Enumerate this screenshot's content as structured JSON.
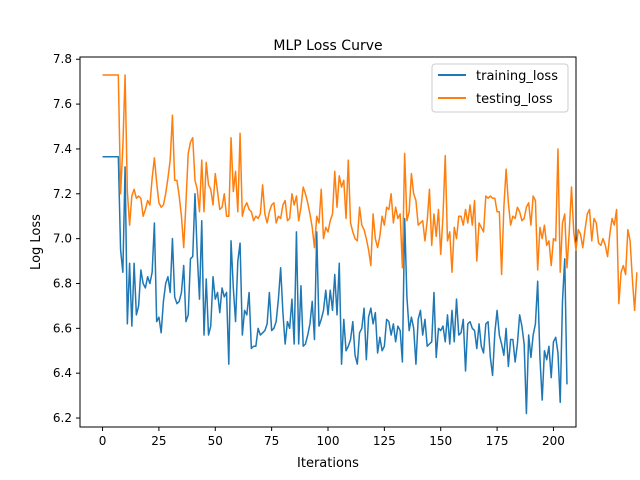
{
  "chart_data": {
    "type": "line",
    "title": "MLP Loss Curve",
    "xlabel": "Iterations",
    "ylabel": "Log Loss",
    "xlim": [
      -10,
      210
    ],
    "ylim": [
      6.16,
      7.81
    ],
    "xticks": [
      0,
      25,
      50,
      75,
      100,
      125,
      150,
      175,
      200
    ],
    "yticks": [
      6.2,
      6.4,
      6.6,
      6.8,
      7.0,
      7.2,
      7.4,
      7.6,
      7.8
    ],
    "legend_position": "top-right",
    "grid": false,
    "series": [
      {
        "name": "training_loss",
        "color": "#1f77b4",
        "values": [
          7.365,
          7.365,
          7.365,
          7.365,
          7.365,
          7.365,
          7.365,
          7.365,
          6.95,
          6.85,
          7.32,
          6.62,
          6.89,
          6.61,
          6.89,
          6.66,
          6.7,
          6.86,
          6.8,
          6.78,
          6.83,
          6.8,
          6.85,
          7.07,
          6.63,
          6.65,
          6.58,
          6.72,
          6.8,
          6.83,
          6.76,
          7.0,
          6.74,
          6.71,
          6.72,
          6.76,
          6.88,
          6.63,
          6.66,
          6.91,
          6.92,
          7.2,
          6.93,
          6.73,
          7.08,
          6.57,
          6.82,
          6.57,
          6.61,
          6.83,
          6.73,
          6.76,
          6.67,
          6.78,
          6.74,
          6.76,
          6.44,
          6.99,
          6.78,
          6.63,
          6.9,
          6.98,
          6.57,
          6.68,
          6.66,
          6.76,
          6.51,
          6.52,
          6.52,
          6.6,
          6.57,
          6.58,
          6.59,
          6.62,
          6.76,
          6.59,
          6.6,
          6.63,
          6.73,
          6.87,
          6.67,
          6.53,
          6.63,
          6.6,
          6.73,
          6.53,
          7.03,
          6.53,
          6.79,
          6.52,
          6.53,
          6.57,
          6.62,
          6.72,
          6.55,
          7.03,
          6.61,
          6.64,
          6.68,
          6.77,
          6.66,
          6.77,
          6.68,
          6.84,
          6.66,
          6.89,
          6.44,
          6.64,
          6.5,
          6.52,
          6.55,
          6.63,
          6.48,
          6.44,
          6.58,
          6.6,
          6.69,
          6.46,
          6.65,
          6.69,
          6.62,
          6.67,
          6.49,
          6.56,
          6.5,
          6.52,
          6.64,
          6.63,
          6.57,
          6.62,
          6.54,
          6.61,
          6.59,
          6.45,
          7.09,
          6.74,
          6.59,
          6.65,
          6.6,
          6.44,
          6.64,
          6.68,
          6.57,
          6.64,
          6.52,
          6.53,
          6.54,
          6.76,
          6.47,
          6.6,
          6.59,
          6.61,
          6.54,
          6.66,
          6.53,
          6.68,
          6.54,
          6.73,
          6.57,
          6.58,
          6.64,
          6.41,
          6.62,
          6.63,
          6.6,
          6.59,
          6.51,
          6.62,
          6.52,
          6.49,
          6.62,
          6.63,
          6.47,
          6.39,
          6.58,
          6.68,
          6.57,
          6.53,
          6.48,
          6.6,
          6.43,
          6.55,
          6.55,
          6.45,
          6.53,
          6.66,
          6.61,
          6.53,
          6.22,
          6.57,
          6.47,
          6.57,
          6.62,
          6.81,
          6.47,
          6.28,
          6.5,
          6.46,
          6.52,
          6.38,
          6.54,
          6.56,
          6.49,
          6.27,
          6.72,
          6.91,
          6.35
        ]
      },
      {
        "name": "testing_loss",
        "color": "#ff7f0e",
        "values": [
          7.73,
          7.73,
          7.73,
          7.73,
          7.73,
          7.73,
          7.73,
          7.73,
          7.2,
          7.41,
          7.73,
          7.21,
          7.06,
          7.19,
          7.22,
          7.18,
          7.19,
          7.18,
          7.1,
          7.13,
          7.17,
          7.15,
          7.27,
          7.36,
          7.25,
          7.16,
          7.14,
          7.15,
          7.2,
          7.27,
          7.35,
          7.55,
          7.26,
          7.26,
          7.19,
          7.1,
          6.96,
          7.16,
          7.38,
          7.43,
          7.45,
          7.26,
          7.22,
          7.12,
          7.35,
          7.12,
          7.34,
          7.24,
          7.22,
          7.15,
          7.29,
          7.21,
          7.13,
          7.14,
          7.2,
          7.1,
          7.1,
          7.45,
          7.21,
          7.3,
          7.12,
          7.47,
          7.1,
          7.14,
          7.16,
          7.13,
          7.12,
          7.08,
          7.1,
          7.09,
          7.11,
          7.24,
          7.11,
          7.07,
          7.12,
          7.15,
          7.16,
          7.07,
          7.1,
          7.09,
          7.15,
          7.17,
          7.08,
          7.09,
          7.2,
          7.15,
          7.19,
          7.08,
          7.14,
          7.23,
          7.2,
          7.16,
          7.11,
          7.05,
          6.96,
          7.1,
          7.07,
          7.22,
          7.0,
          7.05,
          7.03,
          7.08,
          7.11,
          7.3,
          7.14,
          7.28,
          7.23,
          7.26,
          7.09,
          7.35,
          7.07,
          7.03,
          7.0,
          6.99,
          7.14,
          7.06,
          7.04,
          7.0,
          6.95,
          6.88,
          7.11,
          7.0,
          6.96,
          7.01,
          7.1,
          7.06,
          7.14,
          7.13,
          7.2,
          7.07,
          7.14,
          7.09,
          7.11,
          6.87,
          7.38,
          7.08,
          7.12,
          7.29,
          7.2,
          7.17,
          7.06,
          7.07,
          7.08,
          6.99,
          7.08,
          7.22,
          6.97,
          7.11,
          7.01,
          7.13,
          6.93,
          7.1,
          7.37,
          6.99,
          7.03,
          6.85,
          7.05,
          7.0,
          7.1,
          7.1,
          7.06,
          7.13,
          7.07,
          7.15,
          7.06,
          7.17,
          6.9,
          7.07,
          7.05,
          7.03,
          7.19,
          7.18,
          7.19,
          7.18,
          7.18,
          7.12,
          7.12,
          6.84,
          7.14,
          7.31,
          7.16,
          7.06,
          7.1,
          7.09,
          7.14,
          7.12,
          7.08,
          7.09,
          7.14,
          7.16,
          7.06,
          7.19,
          7.17,
          6.86,
          7.05,
          7.0,
          7.06,
          6.97,
          6.99,
          6.88,
          7.0,
          6.99,
          7.4,
          6.85,
          7.07,
          7.11,
          6.87,
          7.03,
          7.23,
          7.03,
          6.95,
          7.04,
          7.02,
          6.96,
          7.04,
          7.11,
          7.13,
          6.99,
          7.09,
          7.07,
          6.98,
          6.97,
          7.0,
          6.97,
          6.92,
          7.02,
          7.09,
          7.06,
          7.13,
          6.71,
          6.85,
          6.88,
          6.84,
          7.04,
          6.99,
          6.82,
          6.68,
          6.85
        ]
      }
    ]
  }
}
